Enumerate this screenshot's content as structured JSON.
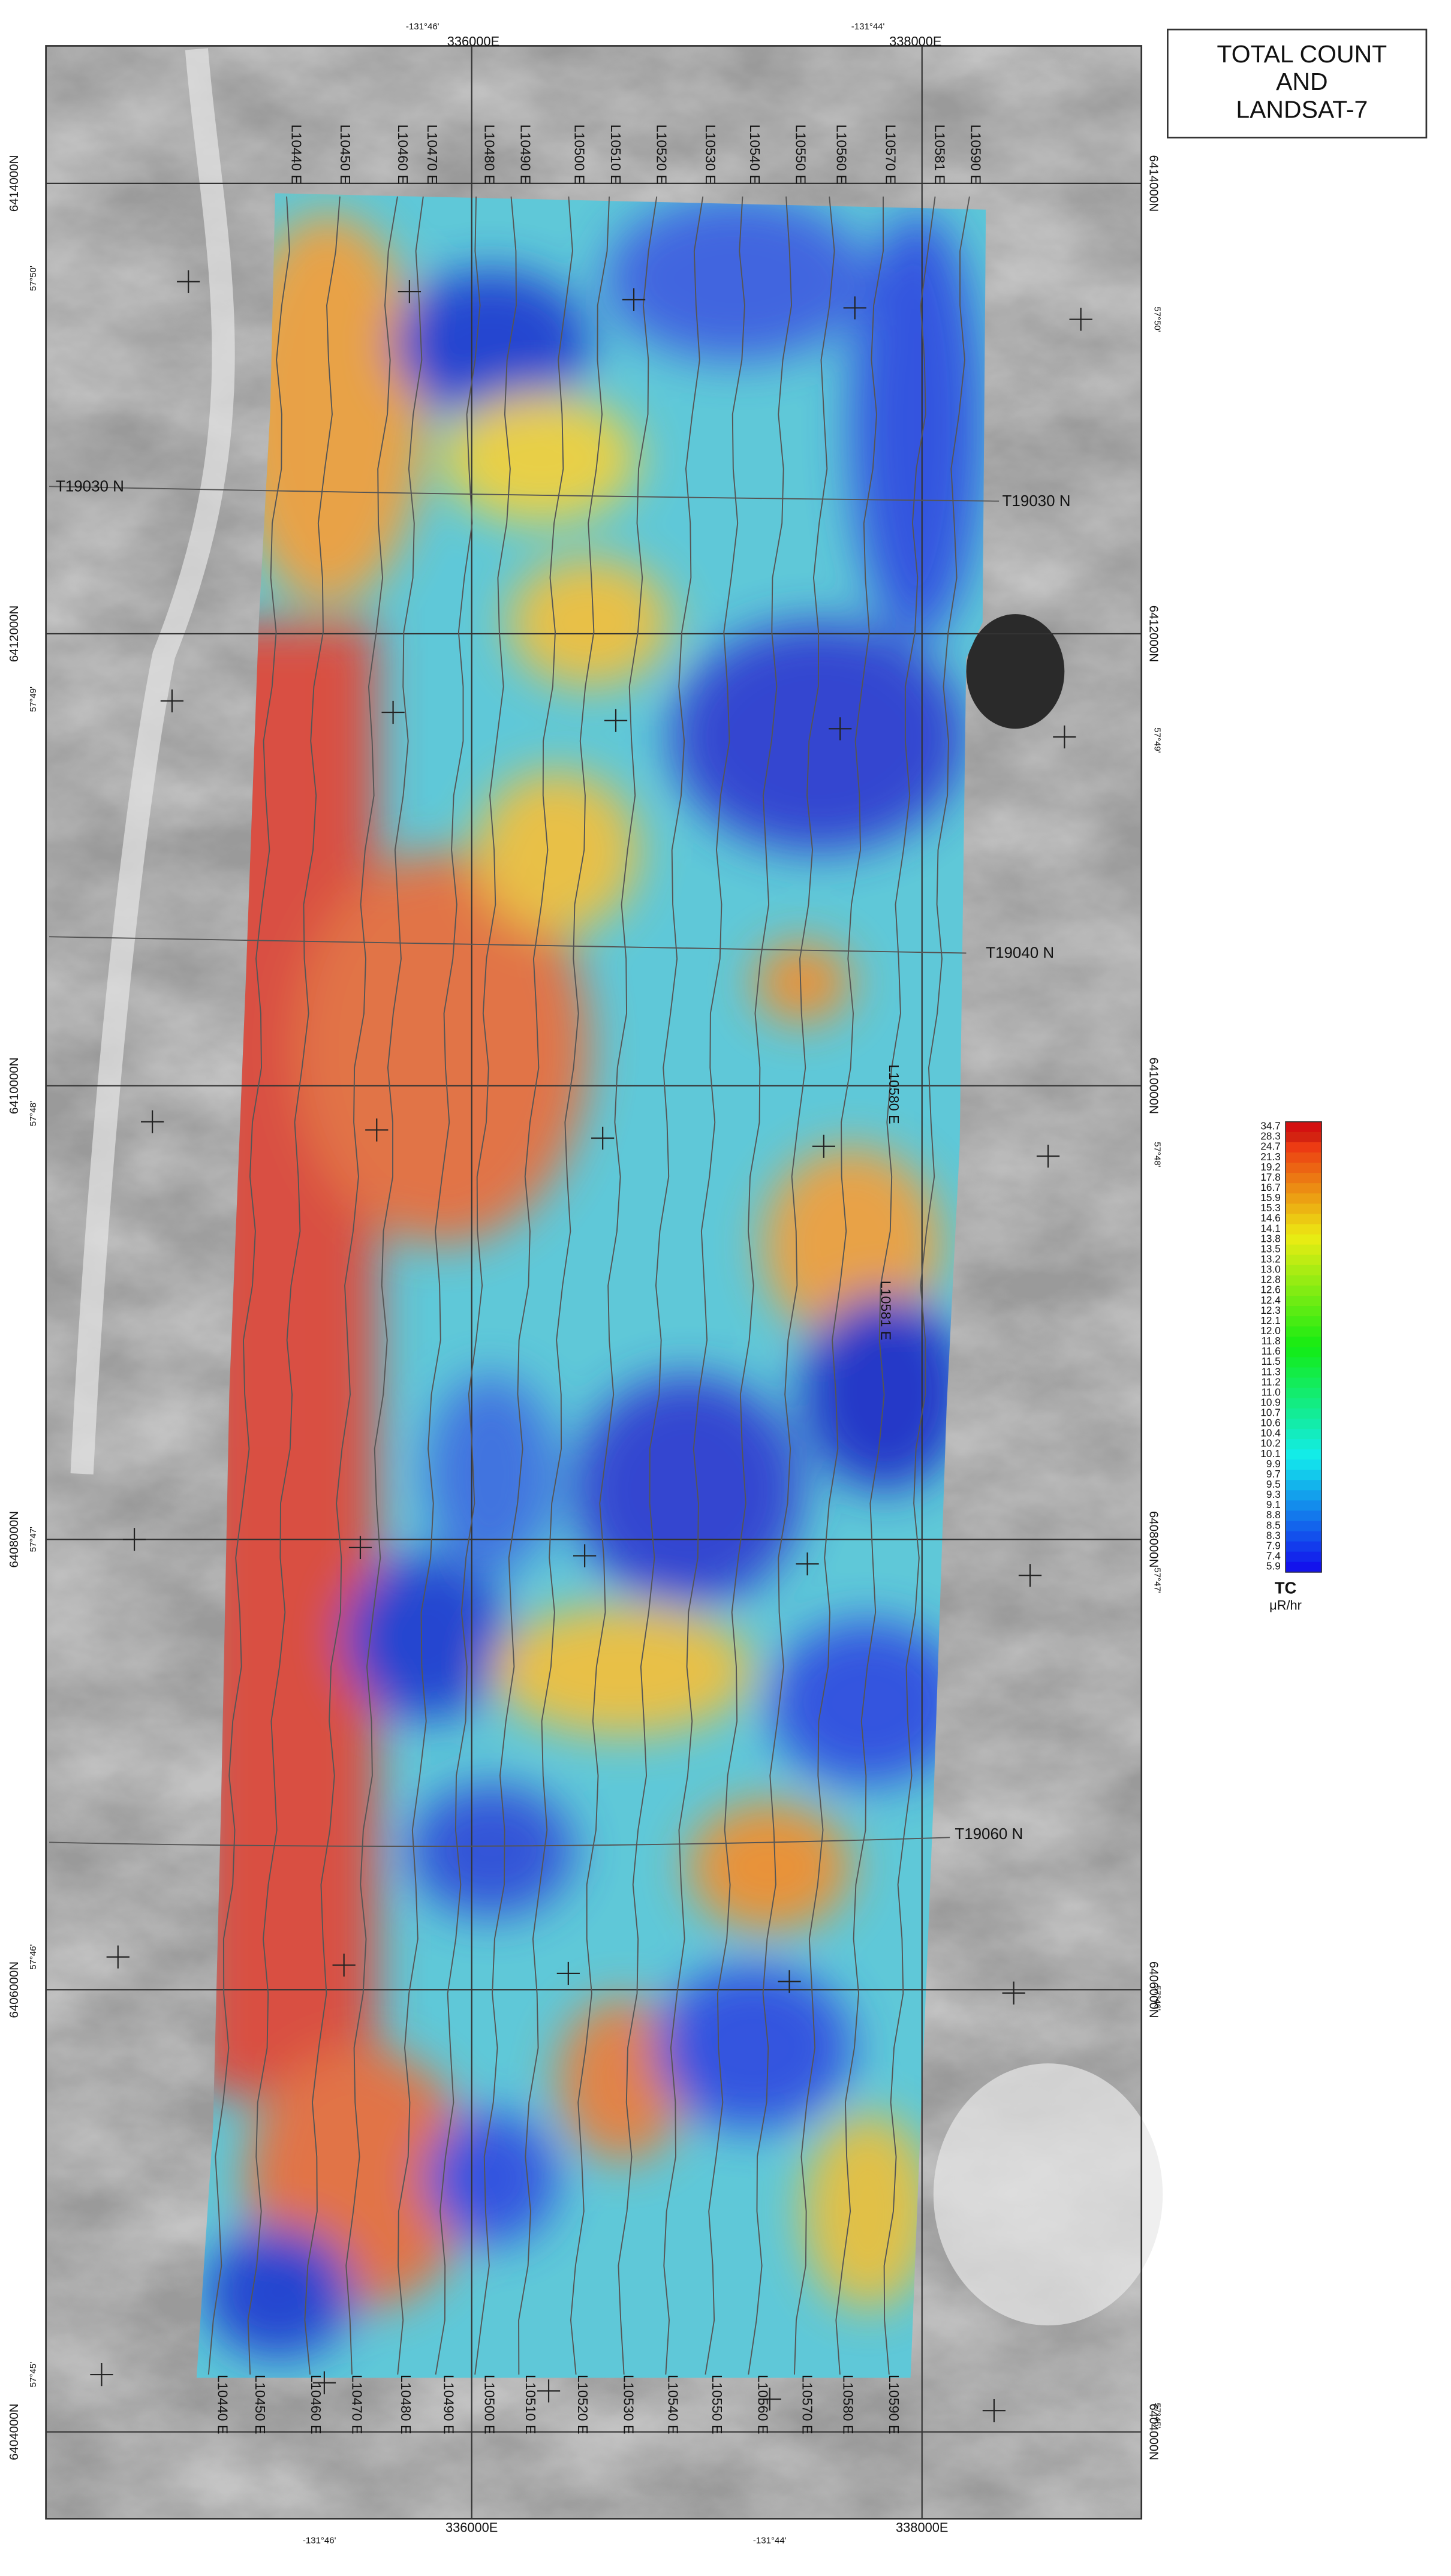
{
  "title_lines": [
    "TOTAL COUNT",
    "AND",
    "LANDSAT-7"
  ],
  "legend": {
    "labels": [
      "34.7",
      "28.3",
      "24.7",
      "21.3",
      "19.2",
      "17.8",
      "16.7",
      "15.9",
      "15.3",
      "14.6",
      "14.1",
      "13.8",
      "13.5",
      "13.2",
      "13.0",
      "12.8",
      "12.6",
      "12.4",
      "12.3",
      "12.1",
      "12.0",
      "11.8",
      "11.6",
      "11.5",
      "11.3",
      "11.2",
      "11.0",
      "10.9",
      "10.7",
      "10.6",
      "10.4",
      "10.2",
      "10.1",
      "9.9",
      "9.7",
      "9.5",
      "9.3",
      "9.1",
      "8.8",
      "8.5",
      "8.3",
      "7.9",
      "7.4",
      "5.9"
    ],
    "title": "TC",
    "unit": "μR/hr"
  },
  "flight_lines_top": [
    "L10440 E",
    "L10450 E",
    "L10460 E",
    "L10470 E",
    "L10480 E",
    "L10490 E",
    "L10500 E",
    "L10510 E",
    "L10520 E",
    "L10530 E",
    "L10540 E",
    "L10550 E",
    "L10560 E",
    "L10570 E",
    "L10581 E",
    "L10590 E"
  ],
  "flight_lines_bottom": [
    "L10440 E",
    "L10450 E",
    "L10460 E",
    "L10470 E",
    "L10480 E",
    "L10490 E",
    "L10500 E",
    "L10510 E",
    "L10520 E",
    "L10530 E",
    "L10540 E",
    "L10550 E",
    "L10560 E",
    "L10570 E",
    "L10580 E",
    "L10590 E"
  ],
  "flight_lines_mid": [
    "L10580 E",
    "L10581 E"
  ],
  "tie_lines": {
    "left": [
      "T19030 N"
    ],
    "right": [
      "T19030 N",
      "T19040 N",
      "T19060 N"
    ]
  },
  "eastings_top": [
    "336000E",
    "338000E"
  ],
  "eastings_bottom": [
    "336000E",
    "338000E"
  ],
  "longitudes_top": [
    "-131°46'",
    "-131°44'"
  ],
  "longitudes_bottom": [
    "-131°46'",
    "-131°44'"
  ],
  "northings_left": [
    "6414000N",
    "6412000N",
    "6410000N",
    "6408000N",
    "6406000N",
    "6404000N"
  ],
  "northings_right": [
    "6414000N",
    "6412000N",
    "6410000N",
    "6408000N",
    "6406000N",
    "6404000N"
  ],
  "latitudes_left": [
    "57°50'",
    "57°49'",
    "57°48'",
    "57°47'",
    "57°46'",
    "57°45'"
  ],
  "latitudes_right": [
    "57°50'",
    "57°49'",
    "57°48'",
    "57°47'",
    "57°46'",
    "57°45'"
  ]
}
